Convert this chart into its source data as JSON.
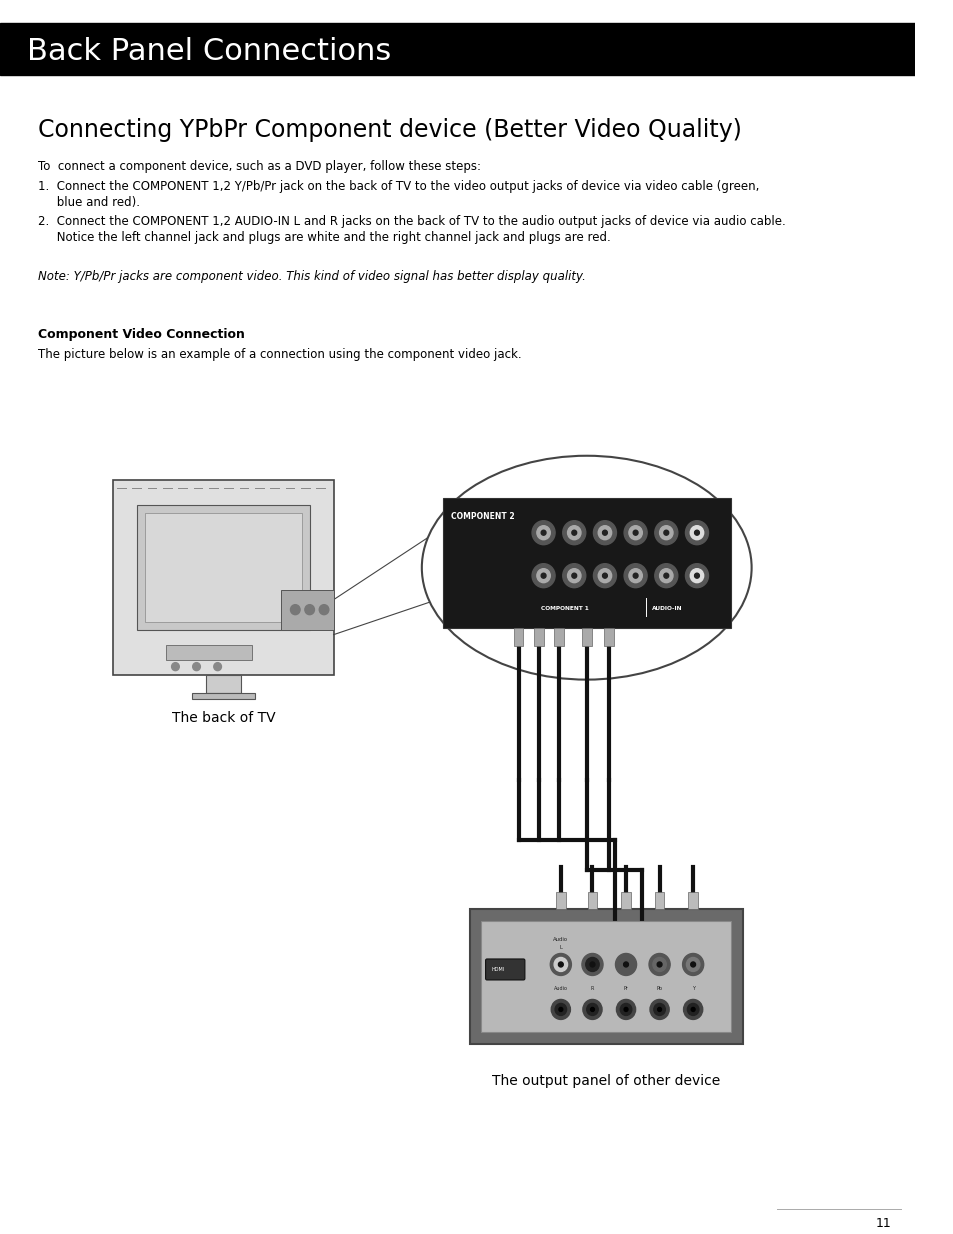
{
  "page_bg": "#ffffff",
  "header_bg": "#000000",
  "header_text": "Back Panel Connections",
  "header_text_color": "#ffffff",
  "header_font_size": 22,
  "section_title": "Connecting YPbPr Component device (Better Video Quality)",
  "section_title_font_size": 17,
  "body_font_size": 8.5,
  "para_intro": "To  connect a component device, such as a DVD player, follow these steps:",
  "step1a": "1.  Connect the COMPONENT 1,2 Y/Pb/Pr jack on the back of TV to the video output jacks of device via video cable (green,",
  "step1b": "     blue and red).",
  "step2a": "2.  Connect the COMPONENT 1,2 AUDIO-IN L and R jacks on the back of TV to the audio output jacks of device via audio cable.",
  "step2b": "     Notice the left channel jack and plugs are white and the right channel jack and plugs are red.",
  "note": "Note: Y/Pb/Pr jacks are component video. This kind of video signal has better display quality.",
  "subsection_title": "Component Video Connection",
  "subsection_desc": "The picture below is an example of a connection using the component video jack.",
  "caption_tv": "The back of TV",
  "caption_device": "The output panel of other device",
  "page_number": "11"
}
